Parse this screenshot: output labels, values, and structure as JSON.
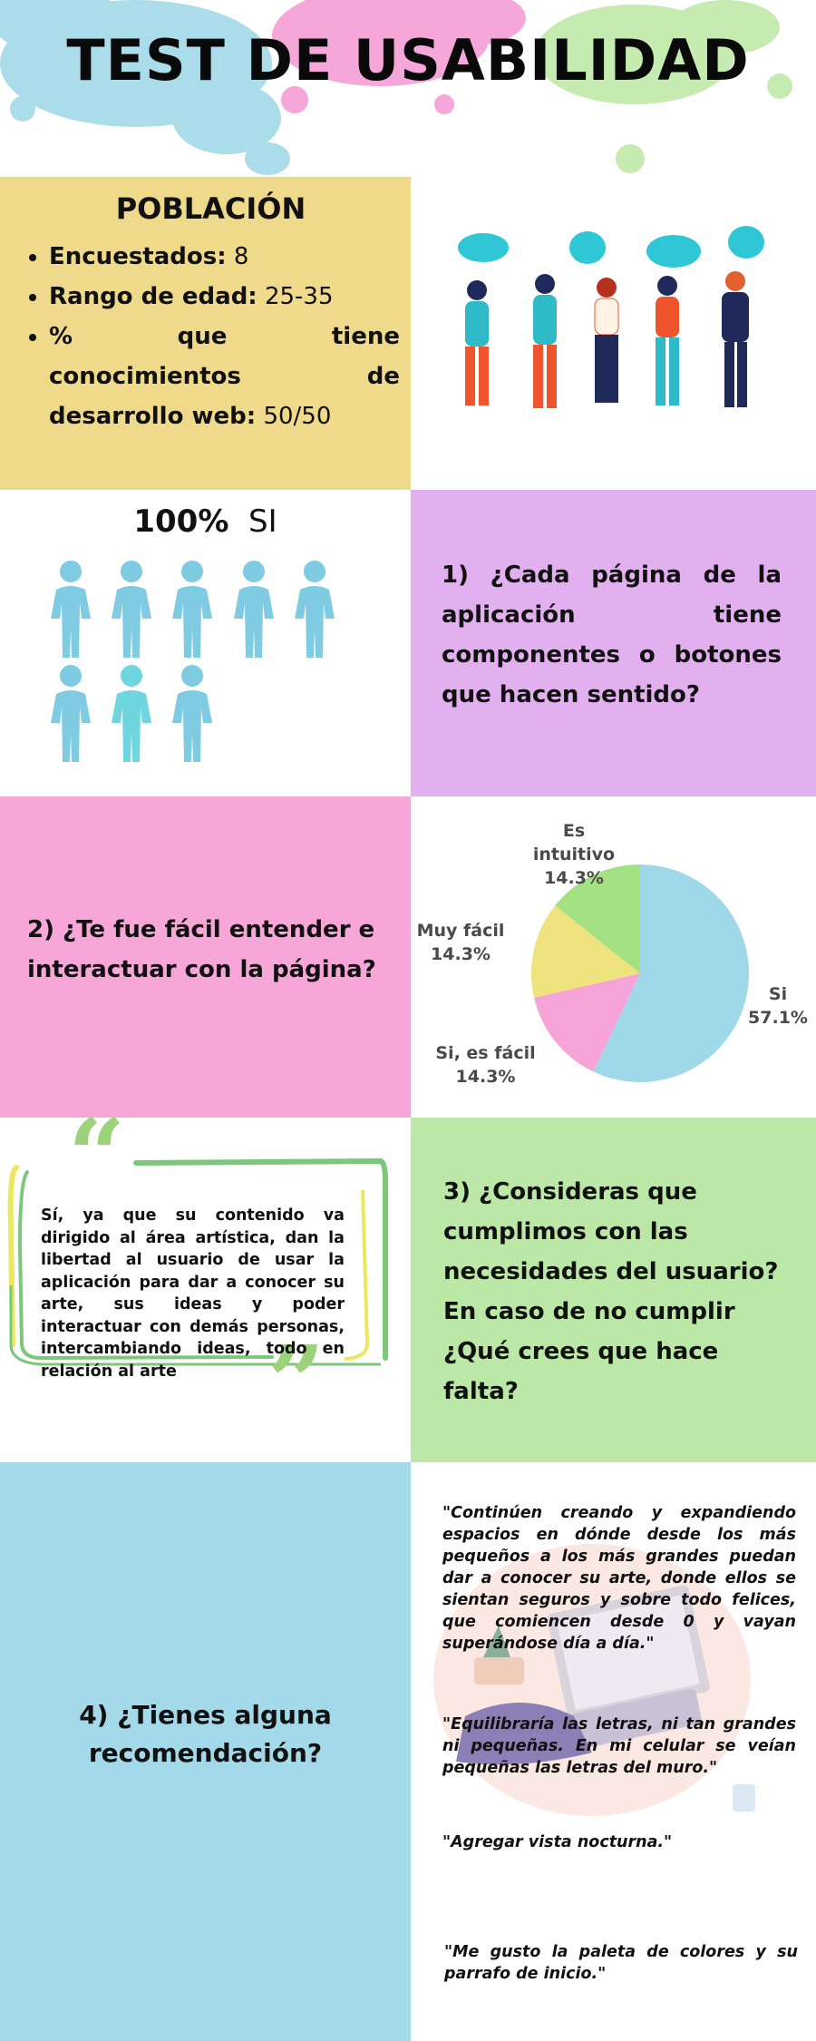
{
  "header": {
    "title": "TEST DE USABILIDAD"
  },
  "poblacion": {
    "title": "POBLACIÓN",
    "items": [
      {
        "label": "Encuestados:",
        "value": " 8"
      },
      {
        "label": "Rango de edad:",
        "value": " 25-35"
      },
      {
        "label": "% que tiene conocimientos de desarrollo web:",
        "value": " 50/50"
      }
    ]
  },
  "q1": {
    "percent": "100%",
    "answer": "SI",
    "question": "1) ¿Cada página de la aplicación tiene componentes o botones que hacen sentido?",
    "people_count": 8
  },
  "q2": {
    "question": "2) ¿Te fue fácil entender e interactuar con la página?",
    "chart_data": {
      "type": "pie",
      "categories": [
        "Si",
        "Si, es fácil",
        "Muy fácil",
        "Es intuitivo"
      ],
      "values": [
        57.1,
        14.3,
        14.3,
        14.3
      ],
      "labels": [
        "57.1%",
        "14.3%",
        "14.3%",
        "14.3%"
      ],
      "colors": [
        "#9fd8e8",
        "#f6a3d8",
        "#efe37e",
        "#a4e084"
      ]
    }
  },
  "q3": {
    "question": "3) ¿Consideras que cumplimos con las necesidades del usuario? En caso de no cumplir ¿Qué crees que hace falta?",
    "quote": "Sí, ya que su contenido va dirigido al área artística, dan la libertad al usuario de usar la aplicación para dar a conocer su arte, sus ideas y poder interactuar con demás personas, intercambiando ideas, todo en relación al arte"
  },
  "q4": {
    "question": "4) ¿Tienes alguna recomendación?",
    "recommendations": [
      "\"Continúen creando y expandiendo espacios en dónde desde los más pequeños a los más grandes puedan dar a conocer su arte, donde ellos se sientan seguros y sobre todo felices, que comiencen desde 0 y vayan superándose día a día.\"",
      "\"Equilibraría las letras, ni tan grandes ni pequeñas. En mi celular se veían pequeñas las letras del muro.\"",
      "\"Agregar vista nocturna.\"",
      "\"Me gusto la paleta de colores y su parrafo de inicio.\""
    ]
  },
  "colors": {
    "yellow": "#efd98a",
    "purple": "#e2b0ef",
    "pink": "#f7a6d8",
    "green": "#bbe8a6",
    "blue": "#a3d9e9"
  }
}
